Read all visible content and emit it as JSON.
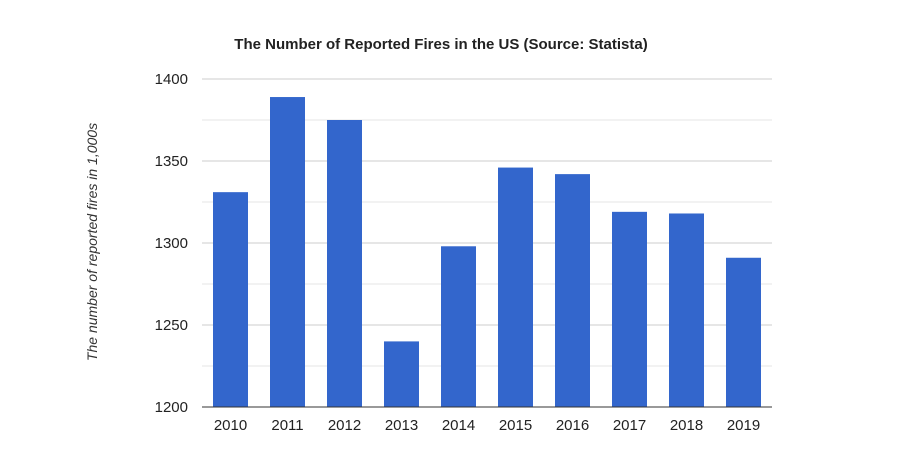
{
  "chart_data": {
    "type": "bar",
    "title": "The Number of Reported Fires in the US (Source: Statista)",
    "xlabel": "",
    "ylabel": "The number of reported fires in 1,000s",
    "categories": [
      "2010",
      "2011",
      "2012",
      "2013",
      "2014",
      "2015",
      "2016",
      "2017",
      "2018",
      "2019"
    ],
    "values": [
      1331,
      1389,
      1375,
      1240,
      1298,
      1346,
      1342,
      1319,
      1318,
      1291
    ],
    "ylim": [
      1200,
      1400
    ],
    "yticks": [
      1200,
      1250,
      1300,
      1350,
      1400
    ],
    "grid": true,
    "legend": "none",
    "bar_color": "#3366cc",
    "grid_color": "#cccccc"
  }
}
